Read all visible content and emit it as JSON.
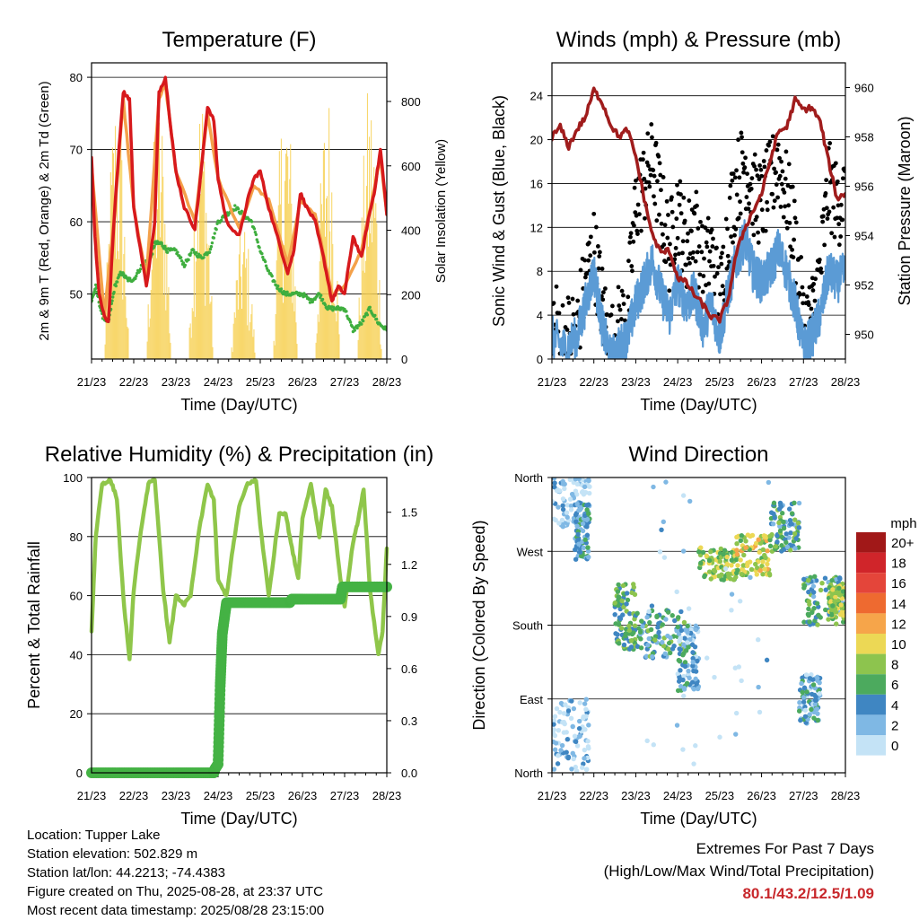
{
  "chart_data": [
    {
      "id": "temperature",
      "type": "line",
      "title": "Temperature (F)",
      "xlabel": "Time (Day/UTC)",
      "ylabel": "2m & 9m T (Red, Orange) & 2m Td (Green)",
      "y2label": "Solar Insolation (Yellow)",
      "x_ticks": [
        "21/23",
        "22/23",
        "23/23",
        "24/23",
        "25/23",
        "26/23",
        "27/23",
        "28/23"
      ],
      "xlim": [
        0,
        7
      ],
      "ylim": [
        41,
        82
      ],
      "yticks": [
        50,
        60,
        70,
        80
      ],
      "y2lim": [
        0,
        920
      ],
      "y2ticks": [
        0,
        200,
        400,
        600,
        800
      ],
      "grid": true,
      "series": [
        {
          "key": "t2m",
          "color": "#d7191c",
          "axis": "left",
          "x": [
            0,
            0.08,
            0.18,
            0.3,
            0.4,
            0.55,
            0.75,
            0.9,
            1.0,
            1.3,
            1.5,
            1.6,
            1.75,
            1.9,
            2.0,
            2.2,
            2.45,
            2.6,
            2.75,
            2.9,
            3.0,
            3.2,
            3.5,
            3.7,
            3.85,
            4.0,
            4.2,
            4.45,
            4.65,
            4.8,
            4.95,
            5.1,
            5.3,
            5.5,
            5.7,
            5.85,
            6.0,
            6.2,
            6.4,
            6.55,
            6.7,
            6.85,
            7.0
          ],
          "y": [
            69,
            58,
            50,
            47,
            46,
            62,
            78,
            77,
            62,
            51,
            60,
            78,
            80,
            72,
            67,
            62,
            59,
            67,
            76,
            74,
            66,
            60,
            58,
            63,
            66,
            67,
            62,
            57,
            53,
            56,
            64,
            62,
            60,
            55,
            49,
            51,
            50,
            58,
            55,
            60,
            64,
            70,
            61
          ]
        },
        {
          "key": "t9m",
          "color": "#f4a14a",
          "axis": "left",
          "x": [
            0,
            0.3,
            0.55,
            0.75,
            1.0,
            1.3,
            1.6,
            1.75,
            2.0,
            2.45,
            2.75,
            3.0,
            3.5,
            3.85,
            4.2,
            4.65,
            4.95,
            5.3,
            5.7,
            6.0,
            6.4,
            6.85,
            7.0
          ],
          "y": [
            68,
            47,
            61,
            77,
            62,
            52,
            77,
            79,
            67,
            60,
            75,
            66,
            59,
            65,
            63,
            54,
            63,
            61,
            50,
            51,
            56,
            69,
            61
          ]
        },
        {
          "key": "td2m",
          "color": "#3fae3f",
          "axis": "left",
          "x": [
            0,
            0.1,
            0.25,
            0.4,
            0.55,
            0.7,
            0.85,
            1.0,
            1.2,
            1.4,
            1.5,
            1.65,
            1.8,
            2.0,
            2.2,
            2.4,
            2.6,
            2.8,
            3.0,
            3.2,
            3.4,
            3.6,
            3.8,
            4.0,
            4.2,
            4.4,
            4.6,
            4.8,
            5.0,
            5.2,
            5.4,
            5.6,
            5.8,
            6.0,
            6.2,
            6.4,
            6.6,
            6.8,
            7.0
          ],
          "y": [
            49,
            51,
            47,
            46,
            51,
            53,
            52,
            52,
            54,
            55,
            57,
            57,
            56,
            56,
            54,
            56,
            55,
            56,
            60,
            61,
            62,
            61,
            60,
            56,
            53,
            51,
            50,
            50,
            50,
            49,
            50,
            48,
            48,
            48,
            45,
            46,
            48,
            46,
            45
          ]
        },
        {
          "key": "solar",
          "color": "#f7d154",
          "axis": "right",
          "days": [
            0.6,
            1.6,
            2.6,
            3.6,
            4.6,
            5.6,
            6.6
          ],
          "peaks": [
            880,
            860,
            880,
            450,
            890,
            870,
            880
          ]
        }
      ]
    },
    {
      "id": "winds",
      "type": "scatter",
      "title": "Winds (mph) & Pressure (mb)",
      "xlabel": "Time (Day/UTC)",
      "ylabel": "Sonic Wind & Gust (Blue, Black)",
      "y2label": "Station Pressure (Maroon)",
      "x_ticks": [
        "21/23",
        "22/23",
        "23/23",
        "24/23",
        "25/23",
        "26/23",
        "27/23",
        "28/23"
      ],
      "xlim": [
        0,
        7
      ],
      "ylim": [
        0,
        27
      ],
      "yticks": [
        0,
        4,
        8,
        12,
        16,
        20,
        24
      ],
      "y2lim": [
        949.0,
        961.0
      ],
      "y2ticks": [
        950,
        952,
        954,
        956,
        958,
        960
      ],
      "grid": true,
      "series": [
        {
          "key": "wind",
          "color": "#5b9bd5",
          "x": [
            0,
            0.3,
            0.6,
            0.8,
            1.0,
            1.2,
            1.4,
            1.6,
            1.8,
            2.0,
            2.2,
            2.4,
            2.6,
            2.8,
            3.0,
            3.2,
            3.4,
            3.6,
            3.8,
            4.0,
            4.2,
            4.4,
            4.6,
            4.8,
            5.0,
            5.2,
            5.4,
            5.6,
            5.8,
            6.0,
            6.2,
            6.4,
            6.6,
            6.8,
            7.0
          ],
          "y": [
            2,
            1,
            2,
            5,
            8,
            3,
            0,
            1,
            2,
            5,
            7,
            9,
            6,
            4,
            7,
            5,
            6,
            3,
            5,
            2,
            6,
            9,
            11,
            8,
            7,
            8,
            10,
            8,
            5,
            1,
            2,
            4,
            8,
            7,
            8
          ]
        },
        {
          "key": "gust",
          "color": "#000000",
          "x": [
            0,
            0.3,
            0.6,
            0.8,
            1.0,
            1.2,
            1.4,
            1.6,
            1.8,
            2.0,
            2.2,
            2.4,
            2.6,
            2.8,
            3.0,
            3.2,
            3.4,
            3.6,
            3.8,
            4.0,
            4.2,
            4.4,
            4.6,
            4.8,
            5.0,
            5.2,
            5.4,
            5.6,
            5.8,
            6.0,
            6.2,
            6.4,
            6.6,
            6.8,
            7.0
          ],
          "y": [
            4,
            2,
            3,
            7,
            10,
            5,
            1,
            3,
            4,
            14,
            16,
            18,
            14,
            10,
            14,
            10,
            13,
            8,
            10,
            5,
            12,
            16,
            18,
            15,
            14,
            16,
            18,
            15,
            11,
            3,
            4,
            8,
            16,
            14,
            15
          ]
        },
        {
          "key": "pressure",
          "color": "#a01c1c",
          "x": [
            0,
            0.2,
            0.4,
            0.6,
            0.8,
            1.0,
            1.2,
            1.4,
            1.6,
            1.8,
            2.0,
            2.2,
            2.4,
            2.6,
            2.8,
            3.0,
            3.2,
            3.4,
            3.6,
            3.8,
            4.0,
            4.2,
            4.4,
            4.6,
            4.8,
            5.0,
            5.2,
            5.4,
            5.6,
            5.8,
            6.0,
            6.2,
            6.4,
            6.6,
            6.8,
            7.0
          ],
          "y": [
            958.0,
            958.4,
            957.6,
            958.3,
            958.8,
            959.9,
            959.4,
            958.5,
            958.0,
            958.3,
            957.2,
            955.5,
            954.0,
            953.3,
            953.4,
            952.3,
            952.1,
            951.6,
            951.2,
            950.7,
            950.6,
            951.4,
            953.3,
            954.3,
            955.0,
            955.7,
            957.0,
            958.2,
            958.4,
            959.5,
            959.1,
            959.2,
            958.6,
            957.0,
            955.5,
            955.7
          ]
        }
      ]
    },
    {
      "id": "humidity",
      "type": "line",
      "title": "Relative Humidity (%) & Precipitation (in)",
      "xlabel": "Time (Day/UTC)",
      "ylabel": "Percent & Total Rainfall",
      "x_ticks": [
        "21/23",
        "22/23",
        "23/23",
        "24/23",
        "25/23",
        "26/23",
        "27/23",
        "28/23"
      ],
      "xlim": [
        0,
        7
      ],
      "ylim": [
        0,
        100
      ],
      "yticks": [
        0,
        20,
        40,
        60,
        80,
        100
      ],
      "y2lim": [
        0,
        1.7
      ],
      "y2ticks": [
        "0.0",
        "0.3",
        "0.6",
        "0.9",
        "1.2",
        "1.5"
      ],
      "y2tick_vals": [
        0,
        0.3,
        0.6,
        0.9,
        1.2,
        1.5
      ],
      "grid": true,
      "series": [
        {
          "key": "rh",
          "color": "#8fc64a",
          "x": [
            0,
            0.1,
            0.25,
            0.45,
            0.6,
            0.75,
            0.9,
            1.0,
            1.2,
            1.35,
            1.5,
            1.7,
            1.85,
            2.0,
            2.2,
            2.35,
            2.55,
            2.75,
            2.9,
            3.0,
            3.2,
            3.35,
            3.5,
            3.7,
            3.9,
            4.0,
            4.2,
            4.45,
            4.6,
            4.75,
            4.9,
            5.0,
            5.2,
            5.4,
            5.55,
            5.7,
            5.9,
            6.0,
            6.2,
            6.3,
            6.45,
            6.6,
            6.8,
            6.9,
            7.0
          ],
          "y": [
            48,
            80,
            98,
            99,
            93,
            60,
            38,
            62,
            85,
            98,
            99,
            62,
            44,
            60,
            57,
            60,
            82,
            98,
            92,
            65,
            60,
            76,
            90,
            98,
            99,
            84,
            60,
            88,
            88,
            76,
            66,
            86,
            98,
            80,
            96,
            90,
            66,
            56,
            78,
            84,
            96,
            62,
            40,
            48,
            76
          ]
        },
        {
          "key": "precip",
          "color": "#44b244",
          "x": [
            0,
            1.0,
            2.0,
            2.9,
            2.92,
            3.0,
            3.05,
            3.1,
            3.2,
            4.0,
            4.7,
            4.75,
            5.0,
            5.9,
            5.95,
            7.0
          ],
          "y": [
            0,
            0,
            0,
            0,
            0.02,
            0.05,
            0.5,
            0.8,
            0.98,
            0.98,
            0.98,
            1.0,
            1.0,
            1.0,
            1.07,
            1.07
          ]
        }
      ]
    },
    {
      "id": "direction",
      "type": "scatter",
      "title": "Wind Direction",
      "xlabel": "Time (Day/UTC)",
      "ylabel": "Direction (Colored By Speed)",
      "x_ticks": [
        "21/23",
        "22/23",
        "23/23",
        "24/23",
        "25/23",
        "26/23",
        "27/23",
        "28/23"
      ],
      "xlim": [
        0,
        7
      ],
      "ylim": [
        0,
        360
      ],
      "ytick_labels": [
        "North",
        "East",
        "South",
        "West",
        "North"
      ],
      "ytick_vals": [
        0,
        90,
        180,
        270,
        360
      ],
      "grid": true,
      "legend": {
        "title": "mph",
        "labels": [
          "20+",
          "18",
          "16",
          "14",
          "12",
          "10",
          "8",
          "6",
          "4",
          "2",
          "0"
        ],
        "colors": [
          "#a11818",
          "#d0252a",
          "#e4453a",
          "#ee6a30",
          "#f6a54a",
          "#ecd855",
          "#8dc44e",
          "#4caa5e",
          "#3f86c2",
          "#7fb8e4",
          "#c4e3f6"
        ]
      },
      "clusters": [
        {
          "x": [
            0,
            0.9
          ],
          "dir": [
            300,
            360
          ],
          "spd": 1
        },
        {
          "x": [
            0,
            0.9
          ],
          "dir": [
            0,
            90
          ],
          "spd": 1
        },
        {
          "x": [
            0.55,
            0.9
          ],
          "dir": [
            260,
            330
          ],
          "spd": 4
        },
        {
          "x": [
            1.5,
            2.0
          ],
          "dir": [
            150,
            230
          ],
          "spd": 6
        },
        {
          "x": [
            2.0,
            3.2
          ],
          "dir": [
            140,
            200
          ],
          "spd": 5
        },
        {
          "x": [
            3.0,
            3.5
          ],
          "dir": [
            100,
            180
          ],
          "spd": 3
        },
        {
          "x": [
            3.5,
            4.4
          ],
          "dir": [
            235,
            275
          ],
          "spd": 8
        },
        {
          "x": [
            4.4,
            5.2
          ],
          "dir": [
            240,
            290
          ],
          "spd": 9
        },
        {
          "x": [
            5.2,
            5.9
          ],
          "dir": [
            270,
            330
          ],
          "spd": 5
        },
        {
          "x": [
            5.9,
            6.4
          ],
          "dir": [
            60,
            120
          ],
          "spd": 3
        },
        {
          "x": [
            6.0,
            7.0
          ],
          "dir": [
            180,
            240
          ],
          "spd": 5
        },
        {
          "x": [
            6.6,
            7.0
          ],
          "dir": [
            190,
            230
          ],
          "spd": 8
        },
        {
          "x": [
            2.2,
            5.2
          ],
          "dir": [
            0,
            360
          ],
          "spd": 1
        }
      ]
    }
  ],
  "info": {
    "location": "Location: Tupper Lake",
    "elevation": "Station elevation: 502.829 m",
    "latlon": "Station lat/lon: 44.2213; -74.4383",
    "created": "Figure created on Thu, 2025-08-28, at 23:37 UTC",
    "recent": "Most recent data timestamp: 2025/08/28 23:15:00"
  },
  "extremes": {
    "line1": "Extremes For Past 7 Days",
    "line2": "(High/Low/Max Wind/Total Precipitation)",
    "values": "80.1/43.2/12.5/1.09"
  }
}
